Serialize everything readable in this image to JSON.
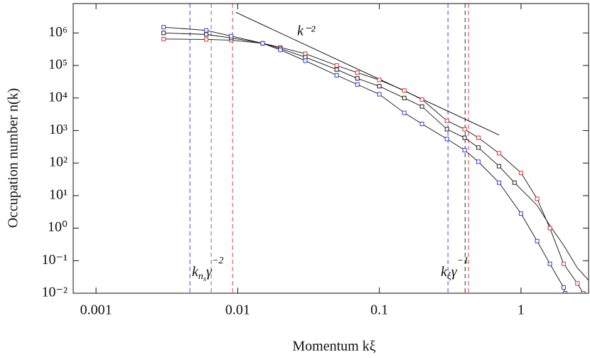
{
  "chart_data": {
    "type": "loglog-scatter",
    "xlabel": "Momentum kξ",
    "ylabel": "Occupation number n(k)",
    "xlim": [
      0.00069,
      3
    ],
    "ylim": [
      0.01,
      8000000
    ],
    "xticks": [
      0.001,
      0.01,
      0.1,
      1
    ],
    "yticks": [
      {
        "value": 0.01,
        "label": "10⁻²"
      },
      {
        "value": 0.1,
        "label": "10⁻¹"
      },
      {
        "value": 1,
        "label": "10⁰"
      },
      {
        "value": 10,
        "label": "10¹"
      },
      {
        "value": 100,
        "label": "10²"
      },
      {
        "value": 1000,
        "label": "10³"
      },
      {
        "value": 10000,
        "label": "10⁴"
      },
      {
        "value": 100000,
        "label": "10⁵"
      },
      {
        "value": 1000000,
        "label": "10⁶"
      }
    ],
    "series": [
      {
        "color": "#e03030",
        "marker": true,
        "x": [
          0.003,
          0.006,
          0.009,
          0.015,
          0.02,
          0.03,
          0.05,
          0.07,
          0.1,
          0.15,
          0.2,
          0.3,
          0.4,
          0.5,
          0.7,
          1,
          1.3,
          1.6,
          2,
          2.5,
          2.75
        ],
        "values": [
          650000,
          630000,
          600000,
          480000,
          360000,
          230000,
          100000,
          60000,
          36000,
          17000,
          9000,
          2000,
          1100,
          600,
          200,
          50,
          8,
          1,
          0.08,
          0.02,
          0.01
        ]
      },
      {
        "color": "#202020",
        "marker": true,
        "x": [
          0.003,
          0.006,
          0.009,
          0.015,
          0.02,
          0.03,
          0.05,
          0.07,
          0.1,
          0.15,
          0.2,
          0.3,
          0.4,
          0.5,
          0.7,
          0.9
        ],
        "values": [
          1000000,
          900000,
          700000,
          480000,
          330000,
          180000,
          75000,
          40000,
          23000,
          10000,
          5500,
          1100,
          600,
          300,
          80,
          25
        ]
      },
      {
        "color": "#202020",
        "marker": false,
        "x": [
          0.9,
          1.3,
          1.6,
          2,
          2.5,
          3
        ],
        "values": [
          25,
          5,
          1.2,
          0.3,
          0.06,
          0.025
        ]
      },
      {
        "color": "#3040e0",
        "marker": true,
        "x": [
          0.003,
          0.006,
          0.009,
          0.015,
          0.02,
          0.03,
          0.05,
          0.07,
          0.1,
          0.15,
          0.2,
          0.3,
          0.4,
          0.5,
          0.7,
          1,
          1.3,
          1.6,
          2,
          2.05
        ],
        "values": [
          1500000,
          1200000,
          800000,
          480000,
          300000,
          140000,
          50000,
          26000,
          13000,
          3500,
          1600,
          550,
          250,
          110,
          25,
          2.8,
          0.4,
          0.08,
          0.015,
          0.01
        ]
      }
    ],
    "guide": {
      "x": [
        0.0097,
        0.7
      ],
      "values": [
        4300000,
        730
      ],
      "label": "k⁻²"
    },
    "vlines": [
      {
        "x": 0.0046,
        "color": "#3050e0"
      },
      {
        "x": 0.0065,
        "color": "#777777"
      },
      {
        "x": 0.0092,
        "color": "#e04040"
      },
      {
        "x": 0.305,
        "color": "#3050e0"
      },
      {
        "x": 0.403,
        "color": "#333333"
      },
      {
        "x": 0.426,
        "color": "#e04040"
      }
    ],
    "annotations": [
      {
        "parts": [
          {
            "t": "k"
          },
          {
            "t": "n",
            "sub": true
          },
          {
            "t": "s",
            "sub2": true
          },
          {
            "t": "γ"
          },
          {
            "t": "−2",
            "sup": true
          }
        ]
      },
      {
        "parts": [
          {
            "t": "k"
          },
          {
            "t": "ξ",
            "sub": true
          },
          {
            "t": "γ"
          },
          {
            "t": "−1",
            "sup": true
          }
        ]
      }
    ]
  }
}
